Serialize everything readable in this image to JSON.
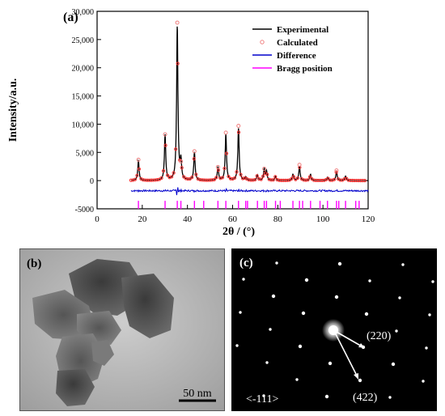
{
  "panels": {
    "a": "(a)",
    "b": "(b)",
    "c": "(c)"
  },
  "chart_data": {
    "type": "line",
    "xlabel": "2θ / (°)",
    "ylabel": "Intensity/a.u.",
    "xlim": [
      0,
      120
    ],
    "ylim": [
      -5000,
      30000
    ],
    "xticks": [
      0,
      20,
      40,
      60,
      80,
      100,
      120
    ],
    "yticks": [
      -5000,
      0,
      5000,
      10000,
      15000,
      20000,
      25000,
      30000
    ],
    "ytick_labels": [
      "-5000",
      "0",
      "5,000",
      "10,000",
      "15,000",
      "20,000",
      "25,000",
      "30,000"
    ],
    "legend_position": "top-right",
    "legend": [
      {
        "label": "Experimental",
        "color": "#000000",
        "style": "line"
      },
      {
        "label": "Calculated",
        "color": "#f08080",
        "style": "circle"
      },
      {
        "label": "Difference",
        "color": "#0000cc",
        "style": "line"
      },
      {
        "label": "Bragg position",
        "color": "#ff00ff",
        "style": "line"
      }
    ],
    "series": [
      {
        "name": "Experimental",
        "peaks_x": [
          18.3,
          30.1,
          35.5,
          37.1,
          43.1,
          53.5,
          57.0,
          62.6,
          65.8,
          71.0,
          74.0,
          75.0,
          79.0,
          86.7,
          89.6,
          94.5,
          102.0,
          106.0,
          110.0
        ],
        "peaks_y": [
          3500,
          8100,
          27200,
          3300,
          5000,
          2300,
          8200,
          9200,
          600,
          1000,
          2000,
          1600,
          700,
          1100,
          2500,
          1100,
          600,
          1600,
          800
        ]
      },
      {
        "name": "Calculated",
        "peaks_x": [
          18.3,
          30.1,
          35.5,
          37.1,
          43.1,
          53.5,
          57.0,
          62.6,
          74.0,
          89.6,
          106.0
        ],
        "peaks_y": [
          3700,
          8200,
          28000,
          3400,
          5200,
          2400,
          8500,
          9700,
          2100,
          2800,
          1800
        ]
      },
      {
        "name": "Difference",
        "baseline": -1800
      },
      {
        "name": "Bragg position",
        "y": -4300,
        "x": [
          18.3,
          30.1,
          35.5,
          37.1,
          43.1,
          47.2,
          53.5,
          57.0,
          62.6,
          65.8,
          66.6,
          71.0,
          74.0,
          75.0,
          79.0,
          81.1,
          86.7,
          89.6,
          91.0,
          94.5,
          98.7,
          102.0,
          106.0,
          107.0,
          110.0,
          114.5,
          116.0
        ]
      }
    ]
  },
  "tem": {
    "scale_bar": "50 nm"
  },
  "saed": {
    "zone_axis": "<-111>",
    "label_220": "(220)",
    "label_422": "(422)"
  }
}
